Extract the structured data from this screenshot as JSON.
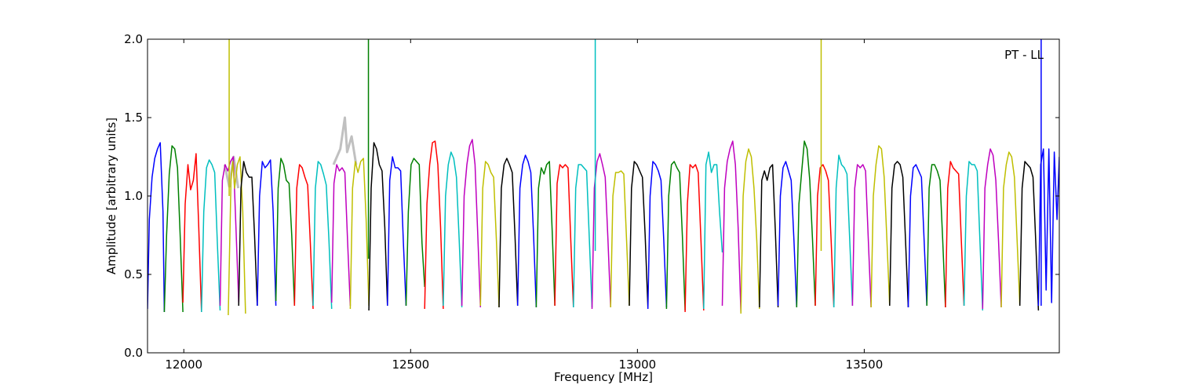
{
  "chart_data": {
    "type": "line",
    "title": "",
    "xlabel": "Frequency [MHz]",
    "ylabel": "Amplitude [arbitrary units]",
    "annotation": "PT - LL",
    "xlim": [
      11920,
      13930
    ],
    "ylim": [
      0.0,
      2.0
    ],
    "xticks": [
      12000,
      12500,
      13000,
      13500
    ],
    "xtick_labels": [
      "12000",
      "12500",
      "13000",
      "13500"
    ],
    "yticks": [
      0.0,
      0.5,
      1.0,
      1.5,
      2.0
    ],
    "ytick_labels": [
      "0.0",
      "0.5",
      "1.0",
      "1.5",
      "2.0"
    ],
    "grid": false,
    "legend": "none",
    "color_cycle": [
      "#0000ff",
      "#008000",
      "#ff0000",
      "#00bfbf",
      "#bf00bf",
      "#bfbf00",
      "#000000"
    ],
    "reference_series_color": "#c0c0c0",
    "channel_width_mhz": 41.67,
    "series": [
      {
        "color": "#0000ff",
        "x": [
          11920,
          11924,
          11930,
          11936,
          11942,
          11948,
          11954,
          11957
        ],
        "y": [
          0.28,
          0.85,
          1.12,
          1.24,
          1.3,
          1.34,
          0.9,
          0.26
        ]
      },
      {
        "color": "#008000",
        "x": [
          11957,
          11962,
          11968,
          11974,
          11980,
          11986,
          11992,
          11998
        ],
        "y": [
          0.26,
          0.75,
          1.14,
          1.32,
          1.3,
          1.18,
          0.75,
          0.26
        ]
      },
      {
        "color": "#ff0000",
        "x": [
          11998,
          12003,
          12009,
          12015,
          12021,
          12027,
          12033,
          12039
        ],
        "y": [
          0.32,
          0.95,
          1.2,
          1.04,
          1.1,
          1.27,
          0.8,
          0.26
        ]
      },
      {
        "color": "#00bfbf",
        "x": [
          12039,
          12044,
          12050,
          12056,
          12062,
          12068,
          12074,
          12080
        ],
        "y": [
          0.26,
          0.9,
          1.18,
          1.23,
          1.2,
          1.15,
          0.7,
          0.27
        ]
      },
      {
        "color": "#bf00bf",
        "x": [
          12080,
          12085,
          12091,
          12097,
          12103,
          12109,
          12115,
          12121
        ],
        "y": [
          0.3,
          1.1,
          1.2,
          1.16,
          1.22,
          1.25,
          0.8,
          0.32
        ]
      },
      {
        "color": "#bfbf00",
        "x": [
          12098,
          12104,
          12108,
          12112,
          12118,
          12124,
          12130,
          12136
        ],
        "y": [
          0.24,
          1.1,
          1.22,
          1.05,
          1.2,
          1.25,
          0.9,
          0.25
        ]
      },
      {
        "color": "#000000",
        "x": [
          12121,
          12126,
          12132,
          12138,
          12144,
          12150,
          12156,
          12162
        ],
        "y": [
          0.3,
          1.05,
          1.22,
          1.15,
          1.12,
          1.12,
          0.75,
          0.3
        ]
      },
      {
        "color": "#0000ff",
        "x": [
          12162,
          12167,
          12173,
          12179,
          12185,
          12191,
          12197,
          12203
        ],
        "y": [
          0.3,
          1.0,
          1.22,
          1.18,
          1.2,
          1.23,
          0.9,
          0.3
        ]
      },
      {
        "color": "#008000",
        "x": [
          12203,
          12208,
          12214,
          12220,
          12226,
          12232,
          12238,
          12244
        ],
        "y": [
          0.33,
          1.05,
          1.24,
          1.2,
          1.1,
          1.08,
          0.75,
          0.3
        ]
      },
      {
        "color": "#ff0000",
        "x": [
          12244,
          12249,
          12255,
          12261,
          12267,
          12273,
          12279,
          12285
        ],
        "y": [
          0.3,
          1.05,
          1.2,
          1.18,
          1.12,
          1.07,
          0.7,
          0.28
        ]
      },
      {
        "color": "#00bfbf",
        "x": [
          12285,
          12290,
          12296,
          12302,
          12308,
          12314,
          12320,
          12326
        ],
        "y": [
          0.3,
          1.05,
          1.22,
          1.2,
          1.14,
          1.07,
          0.72,
          0.28
        ]
      },
      {
        "color": "#bf00bf",
        "x": [
          12326,
          12331,
          12337,
          12343,
          12349,
          12355,
          12361,
          12367
        ],
        "y": [
          0.32,
          1.08,
          1.2,
          1.16,
          1.18,
          1.15,
          0.72,
          0.3
        ]
      },
      {
        "color": "#bfbf00",
        "x": [
          12367,
          12372,
          12378,
          12384,
          12390,
          12396,
          12402,
          12408
        ],
        "y": [
          0.28,
          1.05,
          1.22,
          1.15,
          1.22,
          1.24,
          0.85,
          0.3
        ]
      },
      {
        "color": "#000000",
        "x": [
          12408,
          12413,
          12419,
          12425,
          12431,
          12437,
          12443,
          12449
        ],
        "y": [
          0.27,
          1.05,
          1.34,
          1.3,
          1.2,
          1.16,
          0.8,
          0.3
        ]
      },
      {
        "color": "#0000ff",
        "x": [
          12449,
          12454,
          12460,
          12466,
          12472,
          12478,
          12484,
          12490
        ],
        "y": [
          0.3,
          1.1,
          1.25,
          1.18,
          1.18,
          1.16,
          0.7,
          0.3
        ]
      },
      {
        "color": "#008000",
        "x": [
          12490,
          12495,
          12501,
          12507,
          12513,
          12519,
          12525,
          12531
        ],
        "y": [
          0.3,
          0.9,
          1.2,
          1.24,
          1.22,
          1.2,
          0.7,
          0.42
        ]
      },
      {
        "color": "#ff0000",
        "x": [
          12531,
          12536,
          12542,
          12548,
          12554,
          12560,
          12566,
          12572
        ],
        "y": [
          0.28,
          0.95,
          1.2,
          1.34,
          1.35,
          1.2,
          0.8,
          0.28
        ]
      },
      {
        "color": "#00bfbf",
        "x": [
          12572,
          12577,
          12583,
          12589,
          12595,
          12601,
          12607,
          12613
        ],
        "y": [
          0.3,
          1.0,
          1.2,
          1.28,
          1.24,
          1.12,
          0.72,
          0.29
        ]
      },
      {
        "color": "#bf00bf",
        "x": [
          12613,
          12618,
          12624,
          12630,
          12636,
          12642,
          12648,
          12654
        ],
        "y": [
          0.3,
          1.0,
          1.2,
          1.32,
          1.36,
          1.2,
          0.75,
          0.29
        ]
      },
      {
        "color": "#bfbf00",
        "x": [
          12654,
          12659,
          12665,
          12671,
          12677,
          12683,
          12689,
          12695
        ],
        "y": [
          0.3,
          1.05,
          1.22,
          1.2,
          1.15,
          1.12,
          0.72,
          0.29
        ]
      },
      {
        "color": "#000000",
        "x": [
          12695,
          12700,
          12706,
          12712,
          12718,
          12724,
          12730,
          12736
        ],
        "y": [
          0.29,
          1.05,
          1.2,
          1.24,
          1.2,
          1.15,
          0.75,
          0.3
        ]
      },
      {
        "color": "#0000ff",
        "x": [
          12736,
          12741,
          12747,
          12753,
          12759,
          12765,
          12771,
          12777
        ],
        "y": [
          0.3,
          1.05,
          1.2,
          1.26,
          1.22,
          1.15,
          0.75,
          0.29
        ]
      },
      {
        "color": "#008000",
        "x": [
          12777,
          12782,
          12788,
          12794,
          12800,
          12806,
          12812,
          12818
        ],
        "y": [
          0.29,
          1.05,
          1.18,
          1.14,
          1.2,
          1.22,
          0.78,
          0.3
        ]
      },
      {
        "color": "#ff0000",
        "x": [
          12818,
          12823,
          12829,
          12835,
          12841,
          12847,
          12853,
          12859
        ],
        "y": [
          0.3,
          1.08,
          1.2,
          1.18,
          1.2,
          1.18,
          0.72,
          0.29
        ]
      },
      {
        "color": "#00bfbf",
        "x": [
          12859,
          12864,
          12870,
          12876,
          12882,
          12888,
          12894,
          12900
        ],
        "y": [
          0.29,
          1.05,
          1.2,
          1.2,
          1.18,
          1.16,
          0.72,
          0.29
        ]
      },
      {
        "color": "#bf00bf",
        "x": [
          12900,
          12905,
          12911,
          12917,
          12923,
          12929,
          12935,
          12941
        ],
        "y": [
          0.28,
          1.05,
          1.22,
          1.27,
          1.2,
          1.12,
          0.72,
          0.29
        ]
      },
      {
        "color": "#bfbf00",
        "x": [
          12941,
          12946,
          12952,
          12958,
          12964,
          12970,
          12976,
          12982
        ],
        "y": [
          0.29,
          1.0,
          1.15,
          1.15,
          1.16,
          1.14,
          0.72,
          0.3
        ]
      },
      {
        "color": "#000000",
        "x": [
          12982,
          12987,
          12993,
          12999,
          13005,
          13011,
          13017,
          13023
        ],
        "y": [
          0.3,
          1.05,
          1.22,
          1.2,
          1.16,
          1.12,
          0.75,
          0.29
        ]
      },
      {
        "color": "#0000ff",
        "x": [
          13023,
          13028,
          13034,
          13040,
          13046,
          13052,
          13058,
          13064
        ],
        "y": [
          0.28,
          1.0,
          1.22,
          1.2,
          1.16,
          1.1,
          0.72,
          0.29
        ]
      },
      {
        "color": "#008000",
        "x": [
          13064,
          13069,
          13075,
          13081,
          13087,
          13093,
          13099,
          13105
        ],
        "y": [
          0.28,
          1.0,
          1.2,
          1.22,
          1.18,
          1.15,
          0.75,
          0.27
        ]
      },
      {
        "color": "#ff0000",
        "x": [
          13105,
          13110,
          13116,
          13122,
          13128,
          13134,
          13140,
          13146
        ],
        "y": [
          0.26,
          0.95,
          1.2,
          1.18,
          1.2,
          1.15,
          0.72,
          0.27
        ]
      },
      {
        "color": "#00bfbf",
        "x": [
          13146,
          13151,
          13157,
          13163,
          13169,
          13175,
          13181,
          13187
        ],
        "y": [
          0.28,
          1.2,
          1.28,
          1.15,
          1.2,
          1.2,
          0.9,
          0.64
        ]
      },
      {
        "color": "#bf00bf",
        "x": [
          13187,
          13192,
          13198,
          13204,
          13210,
          13216,
          13222,
          13228
        ],
        "y": [
          0.3,
          1.05,
          1.22,
          1.3,
          1.35,
          1.2,
          0.8,
          0.26
        ]
      },
      {
        "color": "#bfbf00",
        "x": [
          13228,
          13233,
          13239,
          13245,
          13251,
          13257,
          13263,
          13269
        ],
        "y": [
          0.25,
          1.0,
          1.22,
          1.3,
          1.25,
          1.05,
          0.72,
          0.28
        ]
      },
      {
        "color": "#000000",
        "x": [
          13269,
          13274,
          13280,
          13286,
          13292,
          13298,
          13304,
          13310
        ],
        "y": [
          0.29,
          1.1,
          1.16,
          1.1,
          1.18,
          1.2,
          0.78,
          0.29
        ]
      },
      {
        "color": "#0000ff",
        "x": [
          13310,
          13315,
          13321,
          13327,
          13333,
          13339,
          13345,
          13351
        ],
        "y": [
          0.3,
          1.0,
          1.18,
          1.22,
          1.16,
          1.1,
          0.72,
          0.29
        ]
      },
      {
        "color": "#008000",
        "x": [
          13351,
          13356,
          13362,
          13368,
          13374,
          13380,
          13386,
          13392
        ],
        "y": [
          0.29,
          0.95,
          1.15,
          1.35,
          1.3,
          1.1,
          0.72,
          0.3
        ]
      },
      {
        "color": "#ff0000",
        "x": [
          13392,
          13397,
          13403,
          13409,
          13415,
          13421,
          13427,
          13433
        ],
        "y": [
          0.3,
          1.0,
          1.18,
          1.2,
          1.16,
          1.1,
          0.72,
          0.29
        ]
      },
      {
        "color": "#00bfbf",
        "x": [
          13433,
          13438,
          13444,
          13450,
          13456,
          13462,
          13468,
          13474
        ],
        "y": [
          0.29,
          1.05,
          1.26,
          1.2,
          1.18,
          1.14,
          0.72,
          0.3
        ]
      },
      {
        "color": "#bf00bf",
        "x": [
          13474,
          13479,
          13485,
          13491,
          13497,
          13503,
          13509,
          13515
        ],
        "y": [
          0.3,
          1.05,
          1.2,
          1.18,
          1.2,
          1.16,
          0.72,
          0.29
        ]
      },
      {
        "color": "#bfbf00",
        "x": [
          13515,
          13520,
          13526,
          13532,
          13538,
          13544,
          13550,
          13556
        ],
        "y": [
          0.29,
          1.0,
          1.2,
          1.32,
          1.3,
          1.12,
          0.72,
          0.3
        ]
      },
      {
        "color": "#000000",
        "x": [
          13556,
          13561,
          13567,
          13573,
          13579,
          13585,
          13591,
          13597
        ],
        "y": [
          0.3,
          1.05,
          1.2,
          1.22,
          1.2,
          1.12,
          0.72,
          0.29
        ]
      },
      {
        "color": "#0000ff",
        "x": [
          13597,
          13602,
          13608,
          13614,
          13620,
          13626,
          13632,
          13638
        ],
        "y": [
          0.29,
          1.0,
          1.18,
          1.2,
          1.16,
          1.12,
          0.72,
          0.3
        ]
      },
      {
        "color": "#008000",
        "x": [
          13638,
          13643,
          13649,
          13655,
          13661,
          13667,
          13673,
          13679
        ],
        "y": [
          0.3,
          1.05,
          1.2,
          1.2,
          1.16,
          1.1,
          0.72,
          0.29
        ]
      },
      {
        "color": "#ff0000",
        "x": [
          13679,
          13684,
          13690,
          13696,
          13702,
          13708,
          13714,
          13720
        ],
        "y": [
          0.29,
          1.05,
          1.22,
          1.18,
          1.16,
          1.14,
          0.72,
          0.3
        ]
      },
      {
        "color": "#00bfbf",
        "x": [
          13720,
          13725,
          13731,
          13737,
          13743,
          13749,
          13755,
          13761
        ],
        "y": [
          0.3,
          1.0,
          1.22,
          1.2,
          1.2,
          1.16,
          0.72,
          0.27
        ]
      },
      {
        "color": "#bf00bf",
        "x": [
          13761,
          13766,
          13772,
          13778,
          13784,
          13790,
          13796,
          13802
        ],
        "y": [
          0.28,
          1.05,
          1.2,
          1.3,
          1.26,
          1.1,
          0.72,
          0.29
        ]
      },
      {
        "color": "#bfbf00",
        "x": [
          13802,
          13807,
          13813,
          13819,
          13825,
          13831,
          13837,
          13843
        ],
        "y": [
          0.29,
          1.05,
          1.2,
          1.28,
          1.25,
          1.12,
          0.72,
          0.3
        ]
      },
      {
        "color": "#000000",
        "x": [
          13843,
          13848,
          13854,
          13860,
          13866,
          13872,
          13878,
          13884
        ],
        "y": [
          0.3,
          1.05,
          1.22,
          1.2,
          1.18,
          1.12,
          0.72,
          0.27
        ]
      },
      {
        "color": "#0000ff",
        "x": [
          13884,
          13889,
          13895,
          13901,
          13907,
          13913,
          13919,
          13925,
          13930
        ],
        "y": [
          0.3,
          1.2,
          1.3,
          0.4,
          1.3,
          0.32,
          1.28,
          0.85,
          1.25
        ]
      }
    ],
    "reference_series": [
      {
        "x": [
          12090,
          12100,
          12110,
          12120
        ],
        "y": [
          1.2,
          1.06,
          1.25,
          1.05
        ]
      },
      {
        "x": [
          12330,
          12345,
          12355,
          12360,
          12370,
          12380
        ],
        "y": [
          1.2,
          1.3,
          1.5,
          1.28,
          1.38,
          1.2
        ]
      }
    ],
    "spikes": [
      {
        "x": 12100,
        "ymin": 1.0,
        "ymax": 2.0,
        "color": "#bfbf00"
      },
      {
        "x": 12407,
        "ymin": 0.6,
        "ymax": 2.0,
        "color": "#008000"
      },
      {
        "x": 12907,
        "ymin": 0.65,
        "ymax": 2.0,
        "color": "#00bfbf"
      },
      {
        "x": 13405,
        "ymin": 0.65,
        "ymax": 2.0,
        "color": "#bfbf00"
      },
      {
        "x": 13890,
        "ymin": 0.3,
        "ymax": 2.0,
        "color": "#0000ff"
      }
    ]
  }
}
